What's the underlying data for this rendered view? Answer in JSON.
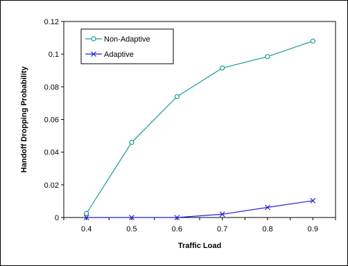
{
  "chart_data": {
    "type": "line",
    "title": "",
    "xlabel": "Traffic Load",
    "ylabel": "Handoff Dropping Probability",
    "x": [
      0.4,
      0.5,
      0.6,
      0.7,
      0.8,
      0.9
    ],
    "xlim": [
      0.35,
      0.95
    ],
    "ylim": [
      0,
      0.12
    ],
    "x_ticks": [
      "0.4",
      "0.5",
      "0.6",
      "0.7",
      "0.8",
      "0.9"
    ],
    "y_ticks": [
      "0",
      "0.02",
      "0.04",
      "0.06",
      "0.08",
      "0.1",
      "0.12"
    ],
    "grid": false,
    "legend_position": "top-left",
    "series": [
      {
        "name": "Non-Adaptive",
        "values": [
          0.0025,
          0.046,
          0.074,
          0.0915,
          0.0985,
          0.108
        ],
        "color": "#1a9a96",
        "marker": "circle"
      },
      {
        "name": "Adaptive",
        "values": [
          0,
          0,
          0,
          0.002,
          0.0062,
          0.0103
        ],
        "color": "#1f1fd6",
        "marker": "x"
      }
    ]
  }
}
